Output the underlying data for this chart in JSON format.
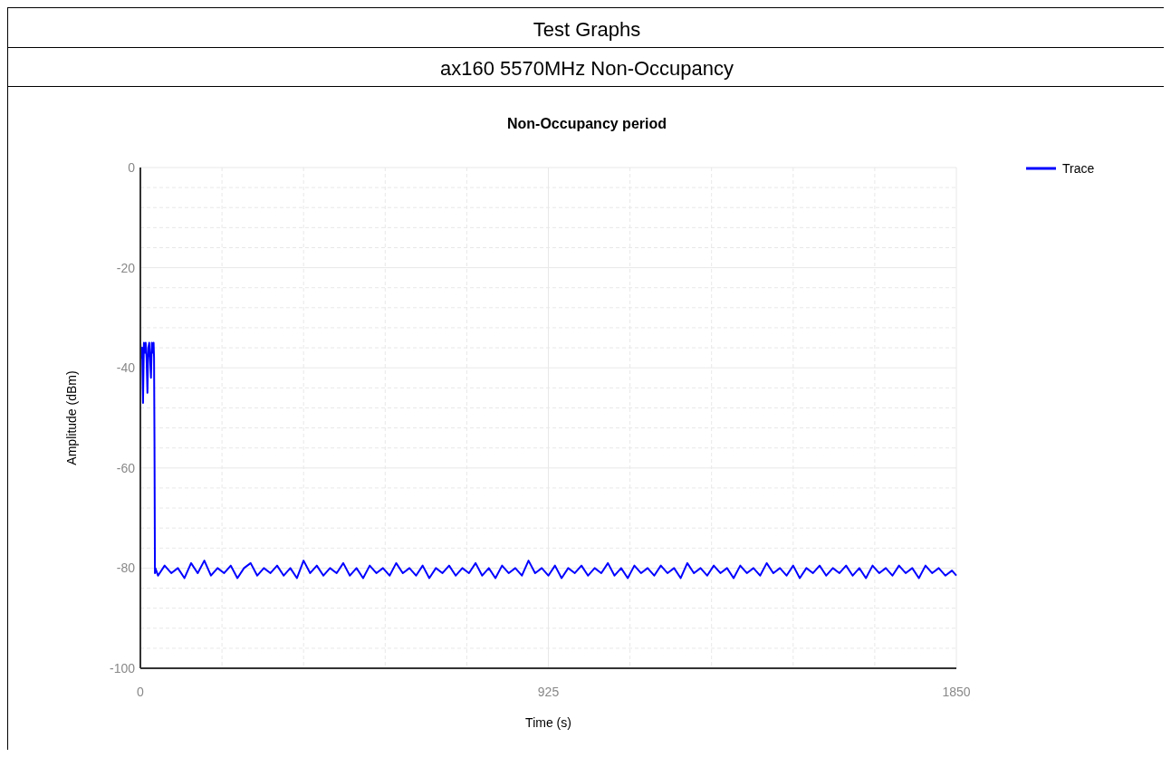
{
  "chart_data": {
    "type": "line",
    "title": "Non-Occupancy period",
    "annotations": [
      "Test Graphs",
      "ax160 5570MHz Non-Occupancy"
    ],
    "xlabel": "Time (s)",
    "ylabel": "Amplitude (dBm)",
    "xlim": [
      0,
      1850
    ],
    "xticks": [
      0,
      {
        "value": 185,
        "label": null
      },
      {
        "value": 370,
        "label": null
      },
      {
        "value": 555,
        "label": null
      },
      {
        "value": 740,
        "label": null
      },
      925,
      {
        "value": 1110,
        "label": null
      },
      {
        "value": 1295,
        "label": null
      },
      {
        "value": 1480,
        "label": null
      },
      {
        "value": 1665,
        "label": null
      },
      1850
    ],
    "ylim": [
      -100,
      0
    ],
    "yticks": [
      -100,
      {
        "value": -96,
        "label": null
      },
      {
        "value": -92,
        "label": null
      },
      {
        "value": -88,
        "label": null
      },
      {
        "value": -84,
        "label": null
      },
      -80,
      {
        "value": -76,
        "label": null
      },
      {
        "value": -72,
        "label": null
      },
      {
        "value": -68,
        "label": null
      },
      {
        "value": -64,
        "label": null
      },
      -60,
      {
        "value": -56,
        "label": null
      },
      {
        "value": -52,
        "label": null
      },
      {
        "value": -48,
        "label": null
      },
      {
        "value": -44,
        "label": null
      },
      -40,
      {
        "value": -36,
        "label": null
      },
      {
        "value": -32,
        "label": null
      },
      {
        "value": -28,
        "label": null
      },
      {
        "value": -24,
        "label": null
      },
      -20,
      {
        "value": -16,
        "label": null
      },
      {
        "value": -12,
        "label": null
      },
      {
        "value": -8,
        "label": null
      },
      {
        "value": -4,
        "label": null
      },
      0
    ],
    "grid": true,
    "legend": "top right",
    "marker": "none",
    "line_style": "solid",
    "x": [
      0,
      2,
      4,
      6,
      8,
      10,
      12,
      14,
      16,
      18,
      20,
      22,
      24,
      26,
      28,
      30,
      31,
      32,
      33,
      34,
      40,
      55,
      70,
      85,
      100,
      115,
      130,
      145,
      160,
      175,
      190,
      205,
      220,
      235,
      250,
      265,
      280,
      295,
      310,
      325,
      340,
      355,
      370,
      385,
      400,
      415,
      430,
      445,
      460,
      475,
      490,
      505,
      520,
      535,
      550,
      565,
      580,
      595,
      610,
      625,
      640,
      655,
      670,
      685,
      700,
      715,
      730,
      745,
      760,
      775,
      790,
      805,
      820,
      835,
      850,
      865,
      880,
      895,
      910,
      925,
      940,
      955,
      970,
      985,
      1000,
      1015,
      1030,
      1045,
      1060,
      1075,
      1090,
      1105,
      1120,
      1135,
      1150,
      1165,
      1180,
      1195,
      1210,
      1225,
      1240,
      1255,
      1270,
      1285,
      1300,
      1315,
      1330,
      1345,
      1360,
      1375,
      1390,
      1405,
      1420,
      1435,
      1450,
      1465,
      1480,
      1495,
      1510,
      1525,
      1540,
      1555,
      1570,
      1585,
      1600,
      1615,
      1630,
      1645,
      1660,
      1675,
      1690,
      1705,
      1720,
      1735,
      1750,
      1765,
      1780,
      1795,
      1810,
      1825,
      1840,
      1850
    ],
    "series": [
      {
        "name": "Trace",
        "color": "#0000ff",
        "values": [
          -35,
          -38,
          -36,
          -47,
          -35,
          -37,
          -35,
          -38,
          -45,
          -36,
          -35,
          -38,
          -42,
          -35,
          -37,
          -35,
          -38,
          -55,
          -81,
          -80,
          -81.5,
          -79.5,
          -81,
          -80,
          -82,
          -79,
          -81,
          -78.5,
          -81.5,
          -80,
          -81,
          -79.5,
          -82,
          -80,
          -79,
          -81.5,
          -80,
          -81,
          -79.5,
          -81.5,
          -80,
          -82,
          -78.5,
          -81,
          -79.5,
          -81.5,
          -80,
          -81,
          -79,
          -81.5,
          -80,
          -82,
          -79.5,
          -81,
          -80,
          -81.5,
          -79,
          -81,
          -80,
          -81.5,
          -79.5,
          -82,
          -80,
          -81,
          -79.5,
          -81.5,
          -80,
          -81,
          -79,
          -81.5,
          -80,
          -82,
          -79.5,
          -81,
          -80,
          -81.5,
          -78.5,
          -81,
          -80,
          -81.5,
          -79.5,
          -82,
          -80,
          -81,
          -79.5,
          -81.5,
          -80,
          -81,
          -79,
          -81.5,
          -80,
          -82,
          -79.5,
          -81,
          -80,
          -81.5,
          -79.5,
          -81,
          -80,
          -82,
          -79,
          -81,
          -80,
          -81.5,
          -79.5,
          -81,
          -80,
          -82,
          -79.5,
          -81,
          -80,
          -81.5,
          -79,
          -81,
          -80,
          -81.5,
          -79.5,
          -82,
          -80,
          -81,
          -79.5,
          -81.5,
          -80,
          -81,
          -79.5,
          -81.5,
          -80,
          -82,
          -79.5,
          -81,
          -80,
          -81.5,
          -79.5,
          -81,
          -80,
          -82,
          -79.5,
          -81,
          -80,
          -81.5,
          -80.5,
          -81.5
        ]
      }
    ]
  }
}
